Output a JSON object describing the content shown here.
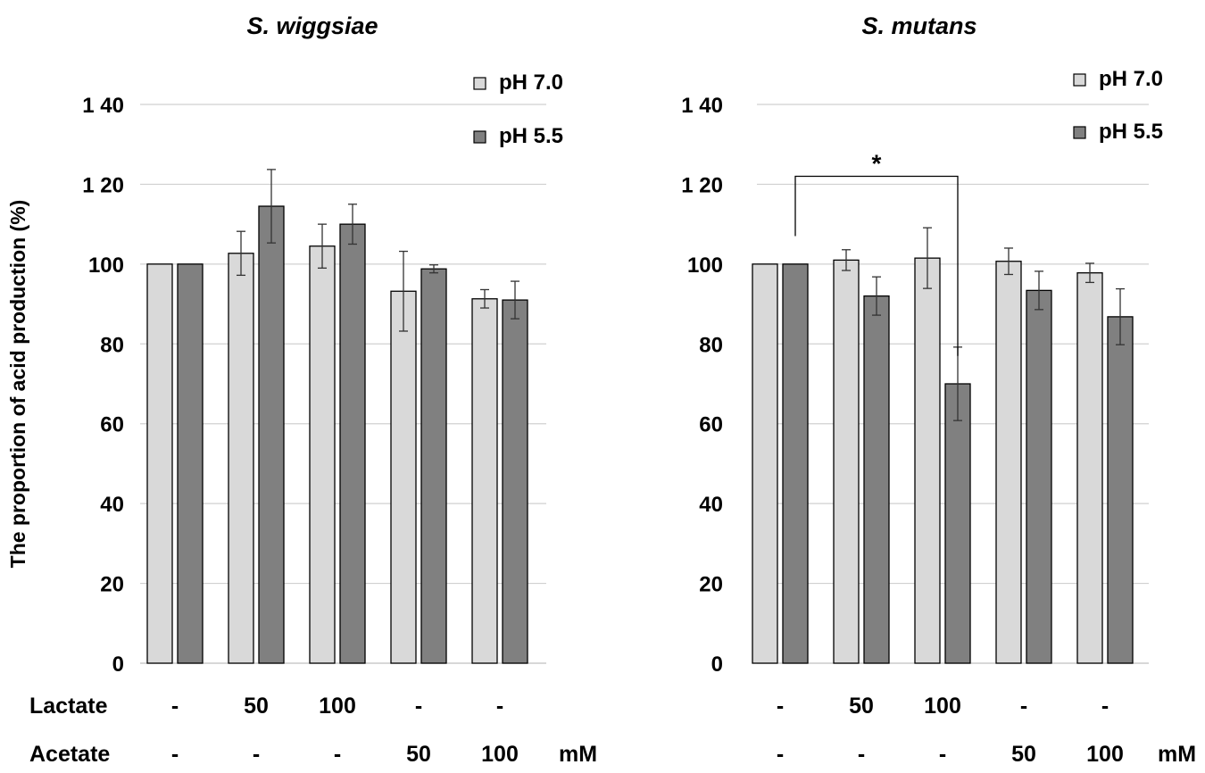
{
  "y_axis_label": "The proportion of acid production (%)",
  "row_labels": {
    "lactate": "Lactate",
    "acetate": "Acetate"
  },
  "conditions": {
    "lactate": [
      "-",
      "50",
      "100",
      "-",
      "-"
    ],
    "acetate": [
      "-",
      "-",
      "-",
      "50",
      "100"
    ],
    "unit": "mM"
  },
  "colors": {
    "ph70": "#d9d9d9",
    "ph55": "#808080",
    "grid": "#d0d0d0",
    "edge": "#000000"
  },
  "chart_data": [
    {
      "type": "bar",
      "title": "S. wiggsiae",
      "ylabel": "The proportion of acid production (%)",
      "ylim": [
        0,
        140
      ],
      "yticks": [
        0,
        20,
        40,
        60,
        80,
        100,
        120,
        140
      ],
      "ytick_labels": [
        "0",
        "20",
        "40",
        "60",
        "80",
        "100",
        "1 20",
        "1 40"
      ],
      "grid": true,
      "legend": "top-right",
      "categories": [
        "-/-",
        "50/-",
        "100/-",
        "-/50",
        "-/100"
      ],
      "series": [
        {
          "name": "pH 7.0",
          "values": [
            100,
            102.7,
            104.5,
            93.2,
            91.3
          ],
          "errors": [
            0,
            5.5,
            5.5,
            10,
            2.3
          ]
        },
        {
          "name": "pH 5.5",
          "values": [
            100,
            114.5,
            110,
            98.8,
            91.0
          ],
          "errors": [
            0,
            9.2,
            5.0,
            1.0,
            4.7
          ]
        }
      ],
      "significance": []
    },
    {
      "type": "bar",
      "title": "S. mutans",
      "ylabel": "",
      "ylim": [
        0,
        140
      ],
      "yticks": [
        0,
        20,
        40,
        60,
        80,
        100,
        120,
        140
      ],
      "ytick_labels": [
        "0",
        "20",
        "40",
        "60",
        "80",
        "100",
        "1 20",
        "1 40"
      ],
      "grid": true,
      "legend": "top-right",
      "categories": [
        "-/-",
        "50/-",
        "100/-",
        "-/50",
        "-/100"
      ],
      "series": [
        {
          "name": "pH 7.0",
          "values": [
            100,
            101,
            101.5,
            100.7,
            97.8
          ],
          "errors": [
            0,
            2.6,
            7.6,
            3.3,
            2.4
          ]
        },
        {
          "name": "pH 5.5",
          "values": [
            100,
            92,
            70,
            93.4,
            86.8
          ],
          "errors": [
            0,
            4.8,
            9.2,
            4.8,
            7.0
          ]
        }
      ],
      "significance": [
        {
          "from_group": 0,
          "from_series": 1,
          "to_group": 2,
          "to_series": 1,
          "label": "*"
        }
      ]
    }
  ]
}
